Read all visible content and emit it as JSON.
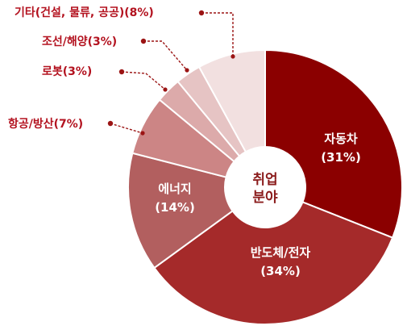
{
  "chart_data": {
    "type": "pie",
    "variant": "donut",
    "center_label": [
      "취업",
      "분야"
    ],
    "slices": [
      {
        "label": "자동차",
        "value": 31,
        "value_text": "(31%)",
        "color": "#8b0000",
        "label_position": "inside"
      },
      {
        "label": "반도체/전자",
        "value": 34,
        "value_text": "(34%)",
        "color": "#a52a2a",
        "label_position": "inside"
      },
      {
        "label": "에너지",
        "value": 14,
        "value_text": "(14%)",
        "color": "#b25f5f",
        "label_position": "inside"
      },
      {
        "label": "항공/방산",
        "value": 7,
        "value_text": "(7%)",
        "color": "#cc8585",
        "label_position": "outside"
      },
      {
        "label": "로봇",
        "value": 3,
        "value_text": "(3%)",
        "color": "#dcaaaa",
        "label_position": "outside"
      },
      {
        "label": "조선/해양",
        "value": 3,
        "value_text": "(3%)",
        "color": "#e6c4c4",
        "label_position": "outside"
      },
      {
        "label": "기타(건설, 물류, 공공)",
        "value": 8,
        "value_text": "(8%)",
        "color": "#f2e0e0",
        "label_position": "outside"
      }
    ],
    "start": "top",
    "direction": "clockwise"
  }
}
